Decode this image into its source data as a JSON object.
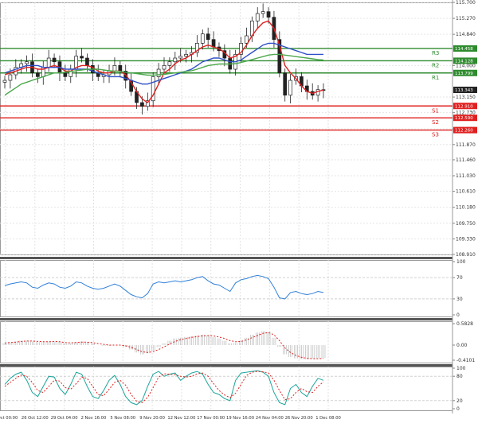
{
  "chart_data": {
    "type": "candlestick",
    "price_axis": {
      "ticks": [
        "115.700",
        "115.270",
        "114.840",
        "114.000",
        "113.150",
        "112.730",
        "112.290",
        "111.870",
        "111.460",
        "111.030",
        "110.610",
        "110.180",
        "109.750",
        "109.330",
        "108.910"
      ],
      "ylim": [
        108.91,
        115.7
      ]
    },
    "time_axis": {
      "ticks": [
        "2 Oct 00:00",
        "26 Oct 12:00",
        "29 Oct 04:00",
        "2 Nov 16:00",
        "5 Nov 08:00",
        "9 Nov 20:00",
        "12 Nov 12:00",
        "17 Nov 00:00",
        "19 Nov 16:00",
        "24 Nov 04:00",
        "26 Nov 20:00",
        "1 Dec 08:00"
      ]
    },
    "levels": [
      {
        "name": "R3",
        "value": 114.458,
        "label": "114.458",
        "color": "#2e8b2e"
      },
      {
        "name": "R2",
        "value": 114.128,
        "label": "114.128",
        "color": "#2e8b2e"
      },
      {
        "name": "R1",
        "value": 113.799,
        "label": "113.799",
        "color": "#2e8b2e"
      },
      {
        "name": "S1",
        "value": 112.91,
        "label": "112.910",
        "color": "#e02020"
      },
      {
        "name": "S2",
        "value": 112.59,
        "label": "112.590",
        "color": "#e02020"
      },
      {
        "name": "S3",
        "value": 112.26,
        "label": "112.260",
        "color": "#e02020"
      }
    ],
    "last_price": {
      "value": 113.343,
      "label": "113.343"
    },
    "close_series": [
      113.6,
      113.75,
      113.95,
      114.05,
      114.1,
      113.8,
      113.7,
      113.95,
      114.2,
      114.1,
      113.8,
      113.7,
      113.9,
      114.25,
      114.2,
      114.0,
      113.8,
      113.7,
      113.75,
      113.85,
      114.0,
      113.85,
      113.6,
      113.3,
      113.0,
      112.9,
      113.05,
      113.7,
      113.9,
      114.0,
      114.1,
      114.2,
      114.25,
      114.3,
      114.35,
      114.6,
      114.85,
      114.7,
      114.5,
      114.4,
      114.2,
      113.9,
      114.3,
      114.6,
      114.8,
      115.2,
      115.4,
      115.45,
      115.3,
      114.7,
      113.8,
      113.2,
      113.6,
      113.7,
      113.45,
      113.3,
      113.2,
      113.35,
      113.34
    ],
    "moving_averages": [
      {
        "color": "#e02020",
        "values": [
          113.75,
          113.8,
          113.85,
          113.9,
          113.95,
          113.95,
          113.9,
          113.9,
          113.95,
          114.0,
          113.95,
          113.85,
          113.85,
          113.95,
          114.0,
          114.0,
          113.95,
          113.85,
          113.8,
          113.8,
          113.85,
          113.85,
          113.75,
          113.55,
          113.3,
          113.1,
          113.0,
          113.2,
          113.5,
          113.8,
          113.9,
          114.05,
          114.15,
          114.2,
          114.3,
          114.4,
          114.5,
          114.55,
          114.5,
          114.45,
          114.35,
          114.2,
          114.25,
          114.35,
          114.55,
          114.8,
          115.0,
          115.15,
          115.2,
          115.0,
          114.55,
          114.0,
          113.8,
          113.65,
          113.45,
          113.3,
          113.25,
          113.3,
          113.34
        ]
      },
      {
        "color": "#3050c8",
        "values": [
          113.8,
          113.85,
          113.9,
          113.95,
          114.0,
          114.0,
          114.0,
          113.95,
          113.95,
          113.95,
          113.95,
          113.9,
          113.9,
          113.9,
          113.9,
          113.9,
          113.85,
          113.8,
          113.75,
          113.7,
          113.7,
          113.7,
          113.65,
          113.6,
          113.55,
          113.5,
          113.5,
          113.55,
          113.6,
          113.65,
          113.7,
          113.75,
          113.8,
          113.85,
          113.9,
          114.0,
          114.1,
          114.15,
          114.2,
          114.2,
          114.15,
          114.1,
          114.1,
          114.15,
          114.25,
          114.35,
          114.45,
          114.55,
          114.6,
          114.6,
          114.55,
          114.5,
          114.45,
          114.4,
          114.35,
          114.3,
          114.3,
          114.3,
          114.3
        ]
      },
      {
        "color": "#4ca84c",
        "values": [
          113.2,
          113.3,
          113.4,
          113.5,
          113.55,
          113.6,
          113.65,
          113.7,
          113.75,
          113.8,
          113.8,
          113.82,
          113.84,
          113.86,
          113.88,
          113.9,
          113.9,
          113.9,
          113.88,
          113.86,
          113.85,
          113.84,
          113.82,
          113.8,
          113.78,
          113.76,
          113.74,
          113.74,
          113.75,
          113.76,
          113.78,
          113.8,
          113.82,
          113.84,
          113.86,
          113.9,
          113.95,
          114.0,
          114.02,
          114.04,
          114.04,
          114.04,
          114.05,
          114.08,
          114.12,
          114.16,
          114.2,
          114.24,
          114.28,
          114.3,
          114.3,
          114.28,
          114.26,
          114.24,
          114.22,
          114.2,
          114.18,
          114.16,
          114.15
        ]
      }
    ],
    "rsi": {
      "ticks": [
        "100",
        "70",
        "30",
        "0"
      ],
      "values": [
        55,
        58,
        60,
        62,
        60,
        52,
        50,
        56,
        60,
        58,
        52,
        50,
        54,
        62,
        60,
        54,
        50,
        48,
        50,
        54,
        58,
        54,
        46,
        38,
        34,
        32,
        40,
        58,
        62,
        60,
        62,
        64,
        62,
        64,
        66,
        70,
        72,
        64,
        58,
        56,
        50,
        44,
        60,
        66,
        68,
        72,
        74,
        72,
        68,
        52,
        32,
        30,
        42,
        44,
        40,
        38,
        40,
        44,
        42
      ]
    },
    "macd": {
      "ticks": [
        "0.5828",
        "0.00",
        "-0.4101"
      ],
      "histogram": [
        0.05,
        0.08,
        0.1,
        0.12,
        0.12,
        0.1,
        0.08,
        0.08,
        0.1,
        0.1,
        0.08,
        0.05,
        0.05,
        0.08,
        0.1,
        0.08,
        0.05,
        0.0,
        -0.02,
        -0.02,
        0.0,
        0.0,
        -0.05,
        -0.12,
        -0.2,
        -0.25,
        -0.22,
        -0.15,
        -0.05,
        0.05,
        0.12,
        0.18,
        0.2,
        0.22,
        0.24,
        0.26,
        0.28,
        0.26,
        0.22,
        0.18,
        0.12,
        0.05,
        0.06,
        0.12,
        0.2,
        0.28,
        0.34,
        0.38,
        0.36,
        0.2,
        -0.05,
        -0.25,
        -0.32,
        -0.36,
        -0.38,
        -0.38,
        -0.37,
        -0.36,
        -0.35
      ],
      "signal": [
        0.06,
        0.07,
        0.08,
        0.1,
        0.11,
        0.11,
        0.1,
        0.09,
        0.09,
        0.1,
        0.09,
        0.07,
        0.06,
        0.07,
        0.08,
        0.08,
        0.07,
        0.04,
        0.02,
        0.0,
        0.0,
        0.0,
        -0.02,
        -0.06,
        -0.12,
        -0.18,
        -0.2,
        -0.18,
        -0.12,
        -0.05,
        0.03,
        0.1,
        0.15,
        0.18,
        0.21,
        0.23,
        0.25,
        0.26,
        0.25,
        0.22,
        0.18,
        0.12,
        0.09,
        0.1,
        0.14,
        0.2,
        0.26,
        0.32,
        0.34,
        0.28,
        0.12,
        -0.08,
        -0.2,
        -0.28,
        -0.33,
        -0.36,
        -0.37,
        -0.37,
        -0.36
      ]
    },
    "stochastic": {
      "ticks": [
        "100",
        "80",
        "20",
        "0"
      ],
      "k": [
        60,
        75,
        85,
        90,
        70,
        40,
        30,
        55,
        80,
        78,
        50,
        35,
        60,
        90,
        85,
        55,
        30,
        25,
        45,
        70,
        82,
        60,
        30,
        15,
        10,
        20,
        55,
        85,
        92,
        80,
        85,
        88,
        70,
        80,
        88,
        92,
        85,
        60,
        40,
        35,
        25,
        20,
        70,
        88,
        90,
        92,
        94,
        90,
        80,
        40,
        15,
        10,
        50,
        60,
        40,
        30,
        55,
        75,
        70
      ],
      "d": [
        55,
        65,
        75,
        83,
        80,
        65,
        45,
        40,
        55,
        70,
        68,
        52,
        48,
        62,
        78,
        75,
        55,
        35,
        32,
        48,
        65,
        70,
        58,
        35,
        18,
        15,
        28,
        52,
        78,
        86,
        85,
        84,
        80,
        78,
        80,
        86,
        88,
        80,
        62,
        45,
        34,
        27,
        38,
        60,
        82,
        90,
        92,
        91,
        88,
        70,
        45,
        22,
        25,
        40,
        50,
        42,
        40,
        55,
        66
      ]
    }
  }
}
